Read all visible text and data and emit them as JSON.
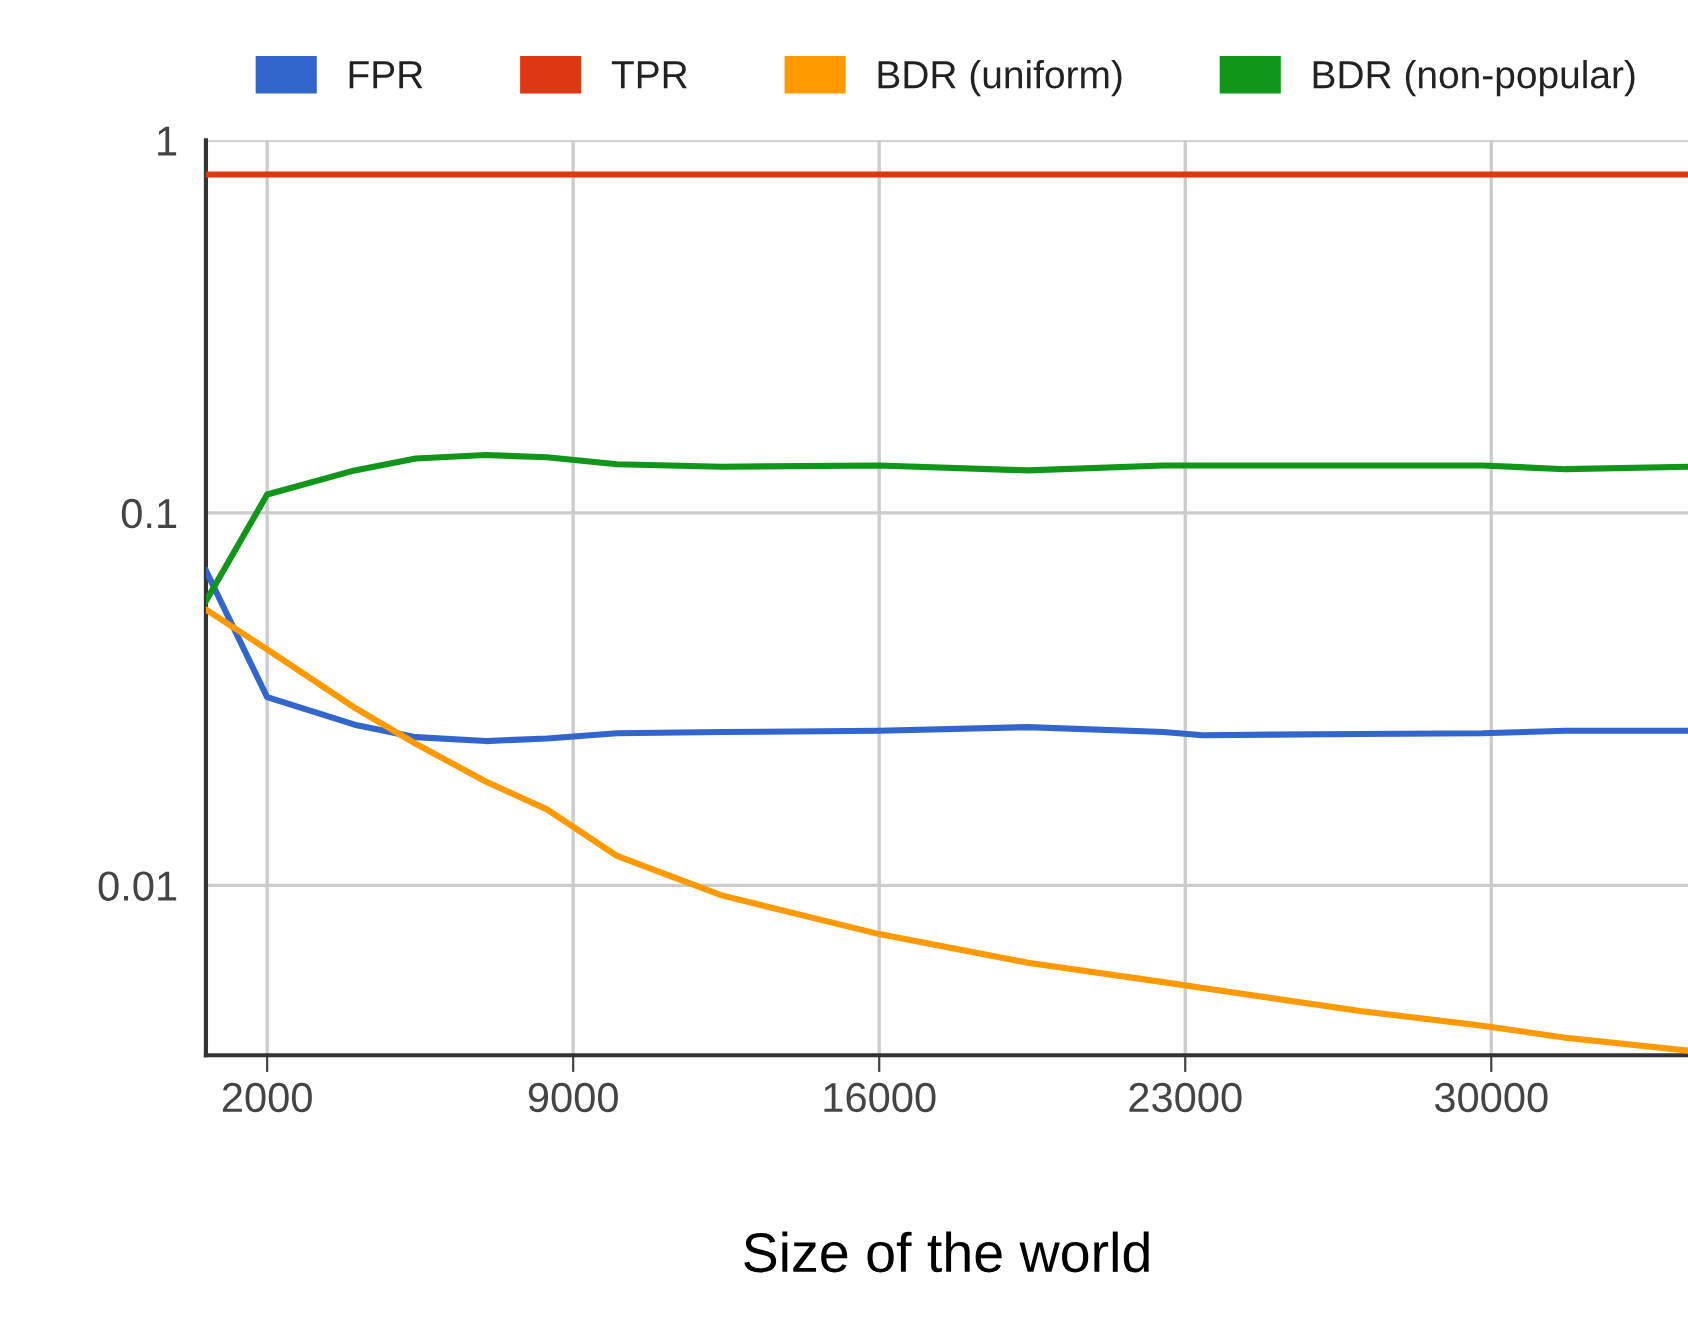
{
  "chart_data": {
    "type": "line",
    "xlabel": "Size of the world",
    "x": [
      600,
      2000,
      4000,
      5400,
      7000,
      8400,
      10000,
      12400,
      16000,
      19400,
      22500,
      23400,
      27000,
      29800,
      31700,
      34500
    ],
    "series": [
      {
        "name": "FPR",
        "color": "#3366cc",
        "values": [
          0.07,
          0.032,
          0.027,
          0.025,
          0.0244,
          0.0248,
          0.0256,
          0.0258,
          0.026,
          0.0266,
          0.0258,
          0.0253,
          0.0255,
          0.0256,
          0.026,
          0.026
        ]
      },
      {
        "name": "TPR",
        "color": "#dc3912",
        "values": [
          0.81,
          0.81,
          0.81,
          0.81,
          0.81,
          0.81,
          0.81,
          0.81,
          0.81,
          0.81,
          0.81,
          0.81,
          0.81,
          0.81,
          0.81,
          0.81
        ]
      },
      {
        "name": "BDR (uniform)",
        "color": "#ff9900",
        "values": [
          0.055,
          0.043,
          0.03,
          0.024,
          0.019,
          0.016,
          0.012,
          0.0094,
          0.0074,
          0.0062,
          0.0055,
          0.0053,
          0.0046,
          0.0042,
          0.0039,
          0.0036
        ]
      },
      {
        "name": "BDR (non-popular)",
        "color": "#109618",
        "values": [
          0.058,
          0.112,
          0.13,
          0.14,
          0.143,
          0.141,
          0.135,
          0.133,
          0.134,
          0.13,
          0.134,
          0.134,
          0.134,
          0.134,
          0.131,
          0.133
        ]
      }
    ],
    "xlim": [
      600,
      34500
    ],
    "xticks": [
      2000,
      9000,
      16000,
      23000,
      30000
    ],
    "ylim": [
      0.0035,
      1
    ],
    "yticks": [
      1,
      0.1,
      0.01
    ],
    "log": "y",
    "grid": true,
    "legend": "top",
    "marker": "none",
    "line_style": "solid"
  }
}
